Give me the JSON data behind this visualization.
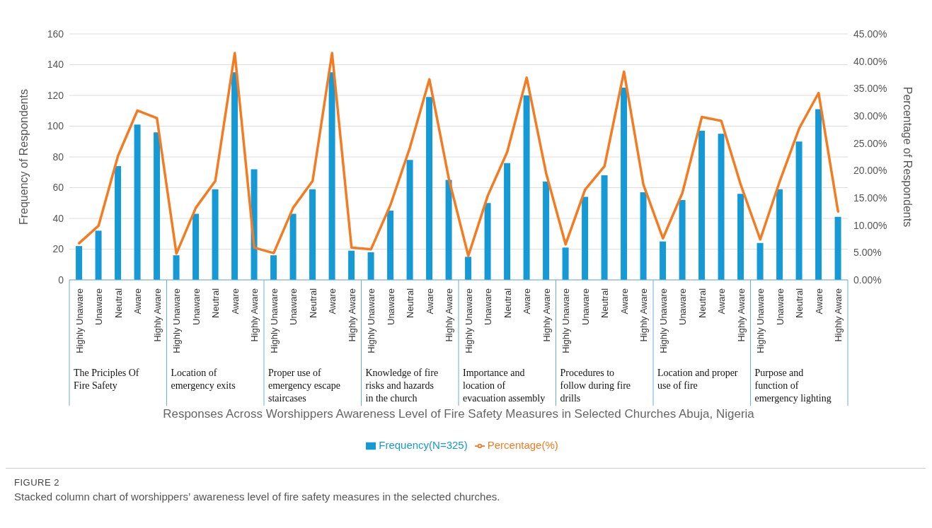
{
  "chart_data": {
    "type": "bar",
    "title": "FIGURE 2",
    "subtitle": "Stacked column chart of worshippers’ awareness level of fire safety measures in the selected churches.",
    "xlabel": "Responses Across Worshippers Awareness Level of Fire Safety Measures in Selected Churches Abuja, Nigeria",
    "ylabel": "Frequency of Respondents",
    "y2label": "Percentage of Respondents",
    "categories": [
      "Highly Unaware",
      "Unaware",
      "Neutral",
      "Aware",
      "Highly Aware",
      "Highly Unaware",
      "Unaware",
      "Neutral",
      "Aware",
      "Highly Aware",
      "Highly Unaware",
      "Unaware",
      "Neutral",
      "Aware",
      "Highly Aware",
      "Highly Unaware",
      "Unaware",
      "Neutral",
      "Aware",
      "Highly Aware",
      "Highly Unaware",
      "Unaware",
      "Neutral",
      "Aware",
      "Highly Aware",
      "Highly Unaware",
      "Unaware",
      "Neutral",
      "Aware",
      "Highly Aware",
      "Highly Unaware",
      "Unaware",
      "Neutral",
      "Aware",
      "Highly Aware",
      "Highly Unaware",
      "Unaware",
      "Neutral",
      "Aware",
      "Highly Aware"
    ],
    "annotations": [
      "The Priciples Of Fire Safety",
      "Location of emergency exits",
      "Proper use of emergency escape staircases",
      "Knowledge of fire risks and hazards in the church",
      "Importance and location of evacuation assembly",
      "Procedures to follow during fire drills",
      "Location and proper use of fire",
      "Purpose and function of emergency lighting"
    ],
    "series": [
      {
        "name": "Frequency(N=325)",
        "color": "#159ad6",
        "values": [
          22,
          32,
          74,
          101,
          96,
          16,
          43,
          59,
          135,
          72,
          16,
          43,
          59,
          135,
          19,
          18,
          45,
          78,
          119,
          65,
          15,
          50,
          76,
          120,
          64,
          21,
          54,
          68,
          125,
          57,
          25,
          52,
          97,
          95,
          56,
          24,
          59,
          90,
          111,
          41
        ]
      },
      {
        "name": "Percentage(%)",
        "type": "line",
        "axis": "y2",
        "color": "#f47b20",
        "values": [
          6.7,
          9.9,
          22.7,
          31.0,
          29.6,
          4.8,
          13.2,
          18.1,
          41.5,
          5.9,
          4.9,
          13.2,
          18.1,
          41.5,
          5.9,
          5.6,
          13.7,
          24.2,
          36.7,
          18.5,
          4.4,
          15.4,
          23.4,
          37.0,
          19.5,
          6.5,
          16.5,
          20.8,
          38.1,
          17.4,
          7.6,
          15.9,
          29.8,
          29.1,
          17.4,
          7.4,
          18.0,
          27.7,
          34.2,
          12.5
        ]
      }
    ],
    "ylim": [
      0,
      160
    ],
    "yticks": [
      0,
      20,
      40,
      60,
      80,
      100,
      120,
      140,
      160
    ],
    "y2lim": [
      0,
      45
    ],
    "y2ticks": [
      {
        "value": 0,
        "label": "0.00%"
      },
      {
        "value": 5,
        "label": "5.00%"
      },
      {
        "value": 10,
        "label": "10.00%"
      },
      {
        "value": 15,
        "label": "15.00%"
      },
      {
        "value": 20,
        "label": "20.00%"
      },
      {
        "value": 25,
        "label": "25.00%"
      },
      {
        "value": 30,
        "label": "30.00%"
      },
      {
        "value": 35,
        "label": "35.00%"
      },
      {
        "value": 40,
        "label": "40.00%"
      },
      {
        "value": 45,
        "label": "45.00%"
      }
    ],
    "grid": "y",
    "legend": "bottom",
    "marker": "none",
    "line_style": "solid"
  }
}
